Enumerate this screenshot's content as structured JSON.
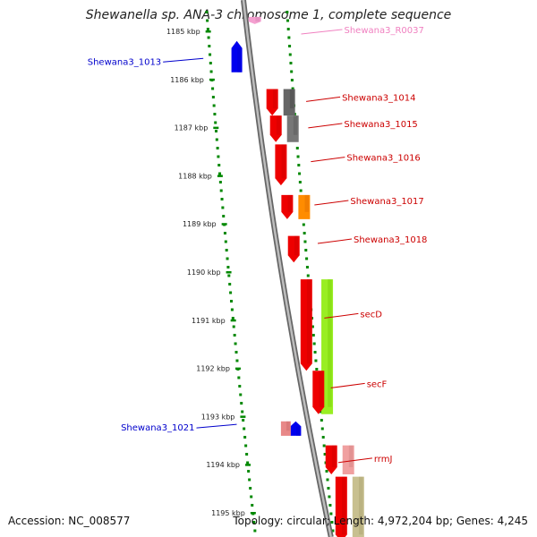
{
  "title": "Shewanella sp. ANA-3 chromosome 1, complete sequence",
  "footer": {
    "accession": "Accession: NC_008577",
    "topology": "Topology: circular; Length: 4,972,204 bp; Genes: 4,245"
  },
  "ticks": [
    {
      "label": "1185 kbp",
      "kbp": 1185
    },
    {
      "label": "1186 kbp",
      "kbp": 1186
    },
    {
      "label": "1187 kbp",
      "kbp": 1187
    },
    {
      "label": "1188 kbp",
      "kbp": 1188
    },
    {
      "label": "1189 kbp",
      "kbp": 1189
    },
    {
      "label": "1190 kbp",
      "kbp": 1190
    },
    {
      "label": "1191 kbp",
      "kbp": 1191
    },
    {
      "label": "1192 kbp",
      "kbp": 1192
    },
    {
      "label": "1193 kbp",
      "kbp": 1193
    },
    {
      "label": "1194 kbp",
      "kbp": 1194
    },
    {
      "label": "1195 kbp",
      "kbp": 1195
    }
  ],
  "gene_labels": [
    {
      "text": "Shewana3_R0037",
      "color": "#f080c0",
      "side": "right",
      "kbp": 1185.0
    },
    {
      "text": "Shewana3_1013",
      "color": "#0000cc",
      "side": "left",
      "kbp": 1185.6
    },
    {
      "text": "Shewana3_1014",
      "color": "#cc0000",
      "side": "right",
      "kbp": 1186.4
    },
    {
      "text": "Shewana3_1015",
      "color": "#cc0000",
      "side": "right",
      "kbp": 1186.95
    },
    {
      "text": "Shewana3_1016",
      "color": "#cc0000",
      "side": "right",
      "kbp": 1187.65
    },
    {
      "text": "Shewana3_1017",
      "color": "#cc0000",
      "side": "right",
      "kbp": 1188.55
    },
    {
      "text": "Shewana3_1018",
      "color": "#cc0000",
      "side": "right",
      "kbp": 1189.35
    },
    {
      "text": "secD",
      "color": "#cc0000",
      "side": "right",
      "kbp": 1190.9
    },
    {
      "text": "secF",
      "color": "#cc0000",
      "side": "right",
      "kbp": 1192.35
    },
    {
      "text": "Shewana3_1021",
      "color": "#0000cc",
      "side": "left",
      "kbp": 1193.2
    },
    {
      "text": "rrmJ",
      "color": "#cc0000",
      "side": "right",
      "kbp": 1193.9
    }
  ],
  "features": [
    {
      "name": "Shewana3_R0037",
      "track": "top",
      "start": 1184.7,
      "end": 1184.85,
      "strand": "+",
      "color": "#f4a0d0"
    },
    {
      "name": "Shewana3_1013",
      "track": "minus",
      "start": 1185.2,
      "end": 1185.85,
      "strand": "-",
      "color": "#0000ee"
    },
    {
      "name": "Shewana3_1014",
      "track": "plus",
      "start": 1186.2,
      "end": 1186.75,
      "strand": "+",
      "color": "#ee0000"
    },
    {
      "name": "Shewana3_1014-cog",
      "track": "cog",
      "start": 1186.2,
      "end": 1186.75,
      "color": "#666666"
    },
    {
      "name": "Shewana3_1015",
      "track": "plus",
      "start": 1186.75,
      "end": 1187.3,
      "strand": "+",
      "color": "#ee0000"
    },
    {
      "name": "Shewana3_1015-cog",
      "track": "cog",
      "start": 1186.75,
      "end": 1187.3,
      "color": "#777777"
    },
    {
      "name": "Shewana3_1016",
      "track": "plus",
      "start": 1187.35,
      "end": 1188.2,
      "strand": "+",
      "color": "#ee0000"
    },
    {
      "name": "Shewana3_1017",
      "track": "plus",
      "start": 1188.4,
      "end": 1188.9,
      "strand": "+",
      "color": "#ee0000"
    },
    {
      "name": "Shewana3_1017-cog",
      "track": "cog",
      "start": 1188.4,
      "end": 1188.9,
      "color": "#ff8c00"
    },
    {
      "name": "Shewana3_1018",
      "track": "plus",
      "start": 1189.25,
      "end": 1189.8,
      "strand": "+",
      "color": "#ee0000"
    },
    {
      "name": "secD",
      "track": "plus",
      "start": 1190.15,
      "end": 1192.05,
      "strand": "+",
      "color": "#ee0000"
    },
    {
      "name": "secD-secF-cog",
      "track": "cog",
      "start": 1190.15,
      "end": 1192.95,
      "color": "#99ee22"
    },
    {
      "name": "secF",
      "track": "plus",
      "start": 1192.05,
      "end": 1192.95,
      "strand": "+",
      "color": "#ee0000"
    },
    {
      "name": "Shewana3_1021",
      "track": "minus",
      "start": 1193.1,
      "end": 1193.4,
      "strand": "-",
      "color": "#0000ee"
    },
    {
      "name": "Shewana3_1021-cog",
      "track": "minus2",
      "start": 1193.1,
      "end": 1193.4,
      "color": "#e88888"
    },
    {
      "name": "rrmJ",
      "track": "plus",
      "start": 1193.6,
      "end": 1194.2,
      "strand": "+",
      "color": "#ee0000"
    },
    {
      "name": "rrmJ-cog",
      "track": "cog",
      "start": 1193.6,
      "end": 1194.2,
      "color": "#f0a0a0"
    },
    {
      "name": "next-gene",
      "track": "plus",
      "start": 1194.25,
      "end": 1195.6,
      "strand": "+",
      "color": "#ee0000"
    },
    {
      "name": "next-gene-cog",
      "track": "cog",
      "start": 1194.25,
      "end": 1195.6,
      "color": "#c8c090"
    }
  ],
  "colors": {
    "backbone": "#888888",
    "tick_dots": "#008800",
    "forward": "#ee0000",
    "reverse": "#0000ee"
  }
}
